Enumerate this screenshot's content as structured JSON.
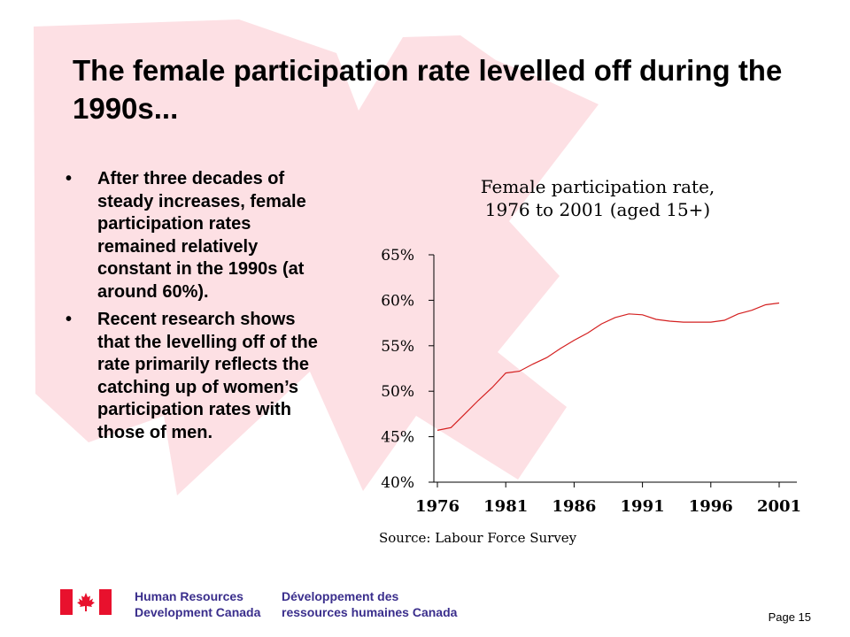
{
  "slide": {
    "title": "The female participation rate levelled off during the 1990s...",
    "bullets": [
      "After three decades of steady increases, female participation rates remained relatively constant in the 1990s (at around 60%).",
      "Recent research shows that the levelling off of the rate primarily reflects the catching up of women’s participation rates with those of men."
    ],
    "bullet_glyph": "•"
  },
  "chart_data": {
    "type": "line",
    "title_lines": [
      "Female participation rate,",
      "1976 to 2001 (aged 15+)"
    ],
    "source": "Source: Labour Force Survey",
    "x_tick_labels": [
      "1976",
      "1981",
      "1986",
      "1991",
      "1996",
      "2001"
    ],
    "y_tick_labels": [
      "40%",
      "45%",
      "50%",
      "55%",
      "60%",
      "65%"
    ],
    "xlim": [
      1976,
      2001
    ],
    "ylim": [
      40,
      65
    ],
    "x": [
      1976,
      1977,
      1978,
      1979,
      1980,
      1981,
      1982,
      1983,
      1984,
      1985,
      1986,
      1987,
      1988,
      1989,
      1990,
      1991,
      1992,
      1993,
      1994,
      1995,
      1996,
      1997,
      1998,
      1999,
      2000,
      2001
    ],
    "series": [
      {
        "values": [
          45.7,
          46.0,
          47.5,
          49.0,
          50.4,
          52.0,
          52.2,
          53.0,
          53.7,
          54.7,
          55.6,
          56.4,
          57.4,
          58.1,
          58.5,
          58.4,
          57.9,
          57.7,
          57.6,
          57.6,
          57.6,
          57.8,
          58.5,
          58.9,
          59.5,
          59.7
        ],
        "color": "#d42020"
      }
    ],
    "grid": false,
    "legend": "none",
    "background": "#ffffff"
  },
  "footer": {
    "dept_en": [
      "Human Resources",
      "Development Canada"
    ],
    "dept_fr": [
      "Développement des",
      "ressources humaines Canada"
    ],
    "page_label": "Page 15"
  },
  "colors": {
    "leaf": "#fde0e4",
    "dept_text": "#3a2e8c",
    "flag_red": "#e8112d"
  }
}
